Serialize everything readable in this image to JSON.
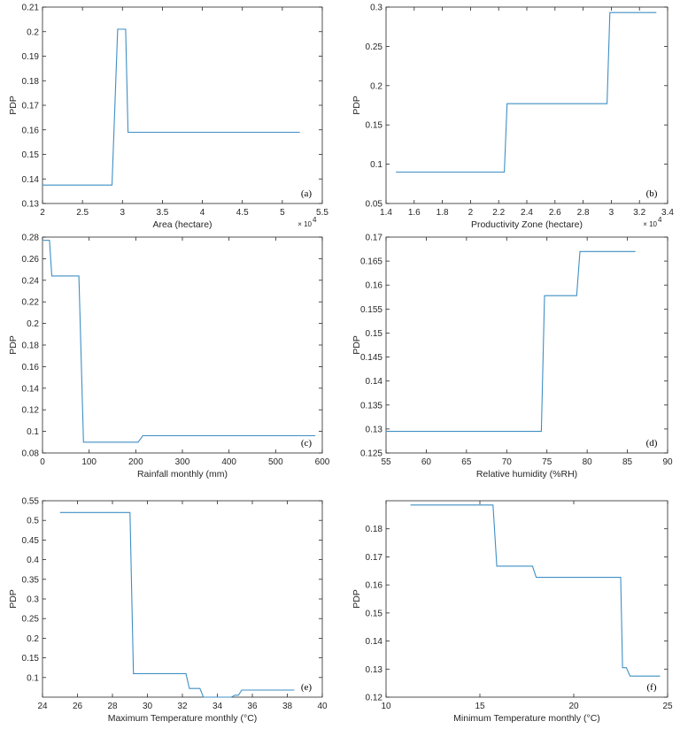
{
  "colors": {
    "series": "#3f8fc4",
    "axis": "#262626"
  },
  "chart_data": [
    {
      "type": "line",
      "panel_label": "(a)",
      "xlabel": "Area (hectare)",
      "ylabel": "PDP",
      "x_multiplier": "× 10",
      "x_exponent": "4",
      "xlim": [
        2,
        5.5
      ],
      "ylim": [
        0.13,
        0.21
      ],
      "xticks": [
        2,
        2.5,
        3,
        3.5,
        4,
        4.5,
        5,
        5.5
      ],
      "xtick_labels": [
        "2",
        "2.5",
        "3",
        "3.5",
        "4",
        "4.5",
        "5",
        "5.5"
      ],
      "yticks": [
        0.13,
        0.14,
        0.15,
        0.16,
        0.17,
        0.18,
        0.19,
        0.2,
        0.21
      ],
      "ytick_labels": [
        "0.13",
        "0.14",
        "0.15",
        "0.16",
        "0.17",
        "0.18",
        "0.19",
        "0.2",
        "0.21"
      ],
      "x": [
        2.0,
        2.87,
        2.94,
        3.04,
        3.07,
        5.22
      ],
      "y": [
        0.1375,
        0.1375,
        0.201,
        0.201,
        0.159,
        0.159
      ]
    },
    {
      "type": "line",
      "panel_label": "(b)",
      "xlabel": "Productivity Zone (hectare)",
      "ylabel": "PDP",
      "x_multiplier": "× 10",
      "x_exponent": "4",
      "xlim": [
        1.4,
        3.4
      ],
      "ylim": [
        0.05,
        0.3
      ],
      "xticks": [
        1.4,
        1.6,
        1.8,
        2.0,
        2.2,
        2.4,
        2.6,
        2.8,
        3.0,
        3.2,
        3.4
      ],
      "xtick_labels": [
        "1.4",
        "1.6",
        "1.8",
        "2",
        "2.2",
        "2.4",
        "2.6",
        "2.8",
        "3",
        "3.2",
        "3.4"
      ],
      "yticks": [
        0.05,
        0.1,
        0.15,
        0.2,
        0.25,
        0.3
      ],
      "ytick_labels": [
        "0.05",
        "0.1",
        "0.15",
        "0.2",
        "0.25",
        "0.3"
      ],
      "x": [
        1.47,
        2.24,
        2.26,
        2.97,
        2.99,
        3.32
      ],
      "y": [
        0.09,
        0.09,
        0.177,
        0.177,
        0.293,
        0.293
      ]
    },
    {
      "type": "line",
      "panel_label": "(c)",
      "xlabel": "Rainfall monthly (mm)",
      "ylabel": "PDP",
      "x_multiplier": "",
      "x_exponent": "",
      "xlim": [
        0,
        600
      ],
      "ylim": [
        0.08,
        0.28
      ],
      "xticks": [
        0,
        100,
        200,
        300,
        400,
        500,
        600
      ],
      "xtick_labels": [
        "0",
        "100",
        "200",
        "300",
        "400",
        "500",
        "600"
      ],
      "yticks": [
        0.08,
        0.1,
        0.12,
        0.14,
        0.16,
        0.18,
        0.2,
        0.22,
        0.24,
        0.26,
        0.28
      ],
      "ytick_labels": [
        "0.08",
        "0.1",
        "0.12",
        "0.14",
        "0.16",
        "0.18",
        "0.2",
        "0.22",
        "0.24",
        "0.26",
        "0.28"
      ],
      "x": [
        2,
        15,
        20,
        78,
        88,
        205,
        215,
        585
      ],
      "y": [
        0.277,
        0.277,
        0.244,
        0.244,
        0.09,
        0.09,
        0.096,
        0.096
      ]
    },
    {
      "type": "line",
      "panel_label": "(d)",
      "xlabel": "Relative humidity (%RH)",
      "ylabel": "PDP",
      "x_multiplier": "",
      "x_exponent": "",
      "xlim": [
        55,
        90
      ],
      "ylim": [
        0.125,
        0.17
      ],
      "xticks": [
        55,
        60,
        65,
        70,
        75,
        80,
        85,
        90
      ],
      "xtick_labels": [
        "55",
        "60",
        "65",
        "70",
        "75",
        "80",
        "85",
        "90"
      ],
      "yticks": [
        0.125,
        0.13,
        0.135,
        0.14,
        0.145,
        0.15,
        0.155,
        0.16,
        0.165,
        0.17
      ],
      "ytick_labels": [
        "0.125",
        "0.13",
        "0.135",
        "0.14",
        "0.145",
        "0.15",
        "0.155",
        "0.16",
        "0.165",
        "0.17"
      ],
      "x": [
        55,
        74.3,
        74.7,
        78.7,
        79.1,
        86
      ],
      "y": [
        0.1295,
        0.1295,
        0.1578,
        0.1578,
        0.167,
        0.167
      ]
    },
    {
      "type": "line",
      "panel_label": "(e)",
      "xlabel": "Maximum Temperature monthly (°C)",
      "ylabel": "PDP",
      "x_multiplier": "",
      "x_exponent": "",
      "xlim": [
        24,
        40
      ],
      "ylim": [
        0.05,
        0.55
      ],
      "xticks": [
        24,
        26,
        28,
        30,
        32,
        34,
        36,
        38,
        40
      ],
      "xtick_labels": [
        "24",
        "26",
        "28",
        "30",
        "32",
        "34",
        "36",
        "38",
        "40"
      ],
      "yticks": [
        0.1,
        0.15,
        0.2,
        0.25,
        0.3,
        0.35,
        0.4,
        0.45,
        0.5,
        0.55
      ],
      "ytick_labels": [
        "0.1",
        "0.15",
        "0.2",
        "0.25",
        "0.3",
        "0.35",
        "0.4",
        "0.45",
        "0.5",
        "0.55"
      ],
      "x": [
        25,
        29,
        29.2,
        32.2,
        32.4,
        33,
        33.2,
        34.8,
        35,
        35.2,
        35.4,
        38.4
      ],
      "y": [
        0.52,
        0.52,
        0.11,
        0.11,
        0.072,
        0.072,
        0.05,
        0.05,
        0.055,
        0.055,
        0.068,
        0.068
      ]
    },
    {
      "type": "line",
      "panel_label": "(f)",
      "xlabel": "Minimum Temperature monthly (°C)",
      "ylabel": "PDP",
      "x_multiplier": "",
      "x_exponent": "",
      "xlim": [
        10,
        25
      ],
      "ylim": [
        0.12,
        0.19
      ],
      "xticks": [
        10,
        15,
        20,
        25
      ],
      "xtick_labels": [
        "10",
        "15",
        "20",
        "25"
      ],
      "yticks": [
        0.12,
        0.13,
        0.14,
        0.15,
        0.16,
        0.17,
        0.18
      ],
      "ytick_labels": [
        "0.12",
        "0.13",
        "0.14",
        "0.15",
        "0.16",
        "0.17",
        "0.18"
      ],
      "x": [
        11.3,
        15.7,
        15.9,
        17.8,
        18,
        22.5,
        22.6,
        22.8,
        23,
        24.6
      ],
      "y": [
        0.1885,
        0.1885,
        0.1667,
        0.1667,
        0.1627,
        0.1627,
        0.1305,
        0.1305,
        0.1275,
        0.1275
      ]
    }
  ]
}
